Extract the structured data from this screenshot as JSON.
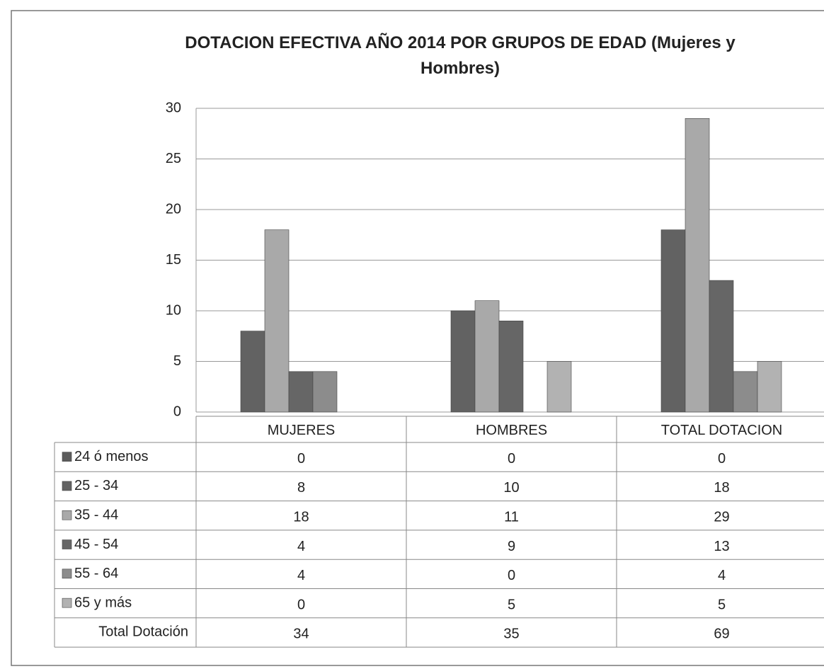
{
  "chart_data": {
    "type": "bar",
    "title": "DOTACION EFECTIVA AÑO 2014 POR GRUPOS DE EDAD (Mujeres y Hombres)",
    "categories": [
      "MUJERES",
      "HOMBRES",
      "TOTAL DOTACION"
    ],
    "series": [
      {
        "name": "24 ó menos",
        "color": "#5c5c5c",
        "values": [
          0,
          0,
          0
        ]
      },
      {
        "name": "25 - 34",
        "color": "#626262",
        "values": [
          8,
          10,
          18
        ]
      },
      {
        "name": "35 - 44",
        "color": "#a9a9a9",
        "values": [
          18,
          11,
          29
        ]
      },
      {
        "name": "45 - 54",
        "color": "#666666",
        "values": [
          4,
          9,
          13
        ]
      },
      {
        "name": "55 - 64",
        "color": "#8c8c8c",
        "values": [
          4,
          0,
          4
        ]
      },
      {
        "name": "65 y más",
        "color": "#b2b2b2",
        "values": [
          0,
          5,
          5
        ]
      }
    ],
    "totals": {
      "name": "Total Dotación",
      "values": [
        34,
        35,
        69
      ]
    },
    "ylim": [
      0,
      30
    ],
    "yticks": [
      0,
      5,
      10,
      15,
      20,
      25,
      30
    ],
    "grid": true
  }
}
